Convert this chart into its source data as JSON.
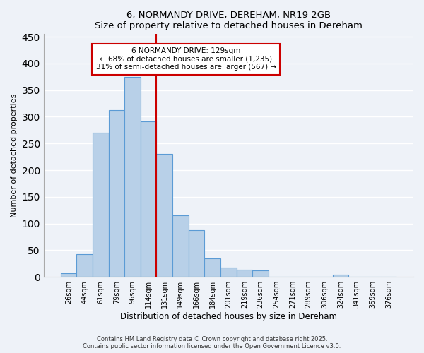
{
  "title": "6, NORMANDY DRIVE, DEREHAM, NR19 2GB",
  "subtitle": "Size of property relative to detached houses in Dereham",
  "xlabel": "Distribution of detached houses by size in Dereham",
  "ylabel": "Number of detached properties",
  "bar_labels": [
    "26sqm",
    "44sqm",
    "61sqm",
    "79sqm",
    "96sqm",
    "114sqm",
    "131sqm",
    "149sqm",
    "166sqm",
    "184sqm",
    "201sqm",
    "219sqm",
    "236sqm",
    "254sqm",
    "271sqm",
    "289sqm",
    "306sqm",
    "324sqm",
    "341sqm",
    "359sqm",
    "376sqm"
  ],
  "bar_values": [
    7,
    42,
    270,
    313,
    375,
    292,
    230,
    116,
    88,
    35,
    18,
    14,
    12,
    0,
    0,
    0,
    0,
    4,
    0,
    0,
    0
  ],
  "bar_color": "#b8d0e8",
  "bar_edge_color": "#5b9bd5",
  "background_color": "#eef2f8",
  "grid_color": "#ffffff",
  "vline_x": 6,
  "vline_color": "#cc0000",
  "annotation_title": "6 NORMANDY DRIVE: 129sqm",
  "annotation_line1": "← 68% of detached houses are smaller (1,235)",
  "annotation_line2": "31% of semi-detached houses are larger (567) →",
  "annotation_box_color": "#ffffff",
  "annotation_box_edge_color": "#cc0000",
  "footer_line1": "Contains HM Land Registry data © Crown copyright and database right 2025.",
  "footer_line2": "Contains public sector information licensed under the Open Government Licence v3.0.",
  "ylim": [
    0,
    455
  ],
  "yticks": [
    0,
    50,
    100,
    150,
    200,
    250,
    300,
    350,
    400,
    450
  ]
}
